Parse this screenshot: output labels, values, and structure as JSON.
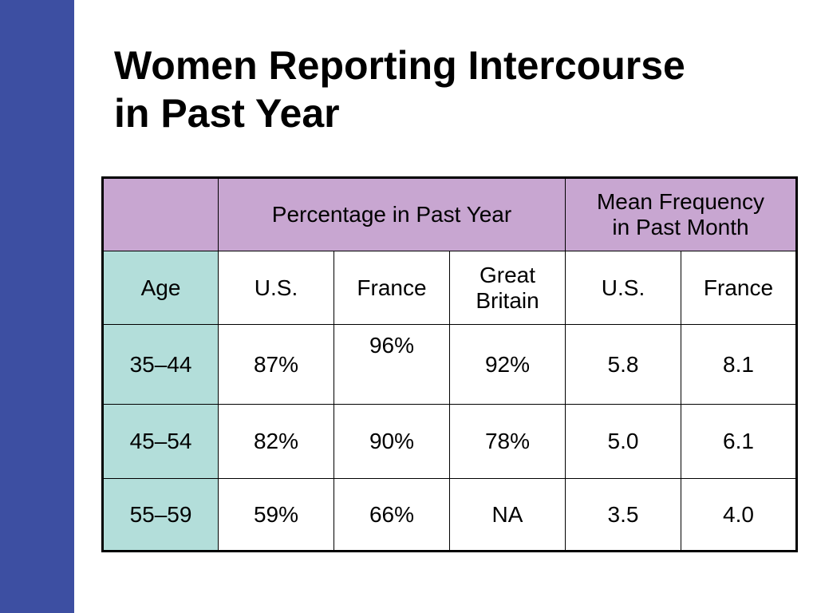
{
  "slide": {
    "title_lines": [
      "Women Reporting Intercourse",
      "in Past Year"
    ],
    "accent_bar_color": "#3d4fa2"
  },
  "table": {
    "header_color": "#c8a6d1",
    "age_column_color": "#b3deda",
    "group_headers": {
      "percentage": "Percentage in Past Year",
      "mean_frequency_line1": "Mean Frequency",
      "mean_frequency_line2": "in Past Month"
    },
    "column_headers": {
      "age": "Age",
      "pct_us": "U.S.",
      "pct_france": "France",
      "pct_gb_line1": "Great",
      "pct_gb_line2": "Britain",
      "freq_us": "U.S.",
      "freq_france": "France"
    },
    "rows": [
      {
        "age": "35–44",
        "pct_us": "87%",
        "pct_france": "96%",
        "pct_gb": "92%",
        "freq_us": "5.8",
        "freq_france": "8.1"
      },
      {
        "age": "45–54",
        "pct_us": "82%",
        "pct_france": "90%",
        "pct_gb": "78%",
        "freq_us": "5.0",
        "freq_france": "6.1"
      },
      {
        "age": "55–59",
        "pct_us": "59%",
        "pct_france": "66%",
        "pct_gb": "NA",
        "freq_us": "3.5",
        "freq_france": "4.0"
      }
    ]
  }
}
